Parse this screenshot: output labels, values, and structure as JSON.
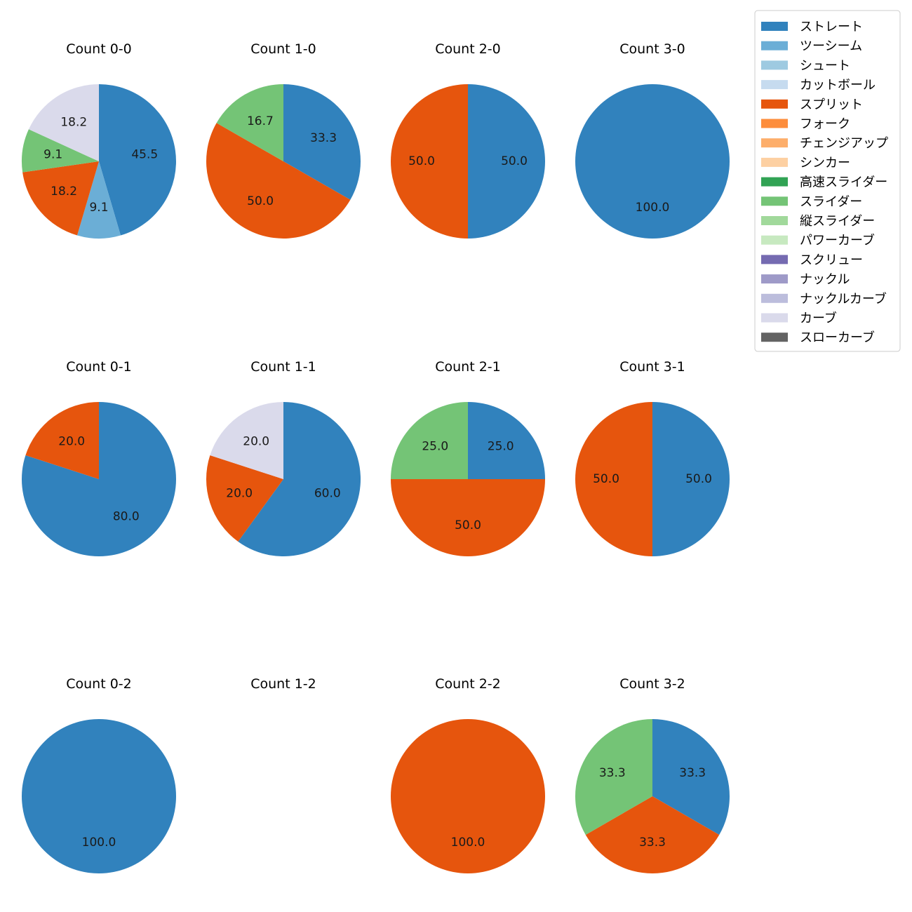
{
  "chart_data": {
    "type": "pie",
    "legend": {
      "placement": "top-right",
      "entries": [
        {
          "name": "ストレート",
          "color": "#3182bd"
        },
        {
          "name": "ツーシーム",
          "color": "#6baed6"
        },
        {
          "name": "シュート",
          "color": "#9ecae1"
        },
        {
          "name": "カットボール",
          "color": "#c6dbef"
        },
        {
          "name": "スプリット",
          "color": "#e6550d"
        },
        {
          "name": "フォーク",
          "color": "#fd8d3c"
        },
        {
          "name": "チェンジアップ",
          "color": "#fdae6b"
        },
        {
          "name": "シンカー",
          "color": "#fdd0a2"
        },
        {
          "name": "高速スライダー",
          "color": "#31a354"
        },
        {
          "name": "スライダー",
          "color": "#74c476"
        },
        {
          "name": "縦スライダー",
          "color": "#a1d99b"
        },
        {
          "name": "パワーカーブ",
          "color": "#c7e9c0"
        },
        {
          "name": "スクリュー",
          "color": "#756bb1"
        },
        {
          "name": "ナックル",
          "color": "#9e9ac8"
        },
        {
          "name": "ナックルカーブ",
          "color": "#bcbddc"
        },
        {
          "name": "カーブ",
          "color": "#dadaeb"
        },
        {
          "name": "スローカーブ",
          "color": "#636363"
        }
      ]
    },
    "pies": [
      {
        "title": "Count 0-0",
        "slices": [
          {
            "pitch": "ストレート",
            "value": 45.5,
            "label": "45.5"
          },
          {
            "pitch": "ツーシーム",
            "value": 9.1,
            "label": "9.1"
          },
          {
            "pitch": "スプリット",
            "value": 18.2,
            "label": "18.2"
          },
          {
            "pitch": "スライダー",
            "value": 9.1,
            "label": "9.1"
          },
          {
            "pitch": "カーブ",
            "value": 18.2,
            "label": "18.2"
          }
        ]
      },
      {
        "title": "Count 1-0",
        "slices": [
          {
            "pitch": "ストレート",
            "value": 33.3,
            "label": "33.3"
          },
          {
            "pitch": "スプリット",
            "value": 50.0,
            "label": "50.0"
          },
          {
            "pitch": "スライダー",
            "value": 16.7,
            "label": "16.7"
          }
        ]
      },
      {
        "title": "Count 2-0",
        "slices": [
          {
            "pitch": "ストレート",
            "value": 50.0,
            "label": "50.0"
          },
          {
            "pitch": "スプリット",
            "value": 50.0,
            "label": "50.0"
          }
        ]
      },
      {
        "title": "Count 3-0",
        "slices": [
          {
            "pitch": "ストレート",
            "value": 100.0,
            "label": "100.0"
          }
        ]
      },
      {
        "title": "Count 0-1",
        "slices": [
          {
            "pitch": "ストレート",
            "value": 80.0,
            "label": "80.0"
          },
          {
            "pitch": "スプリット",
            "value": 20.0,
            "label": "20.0"
          }
        ]
      },
      {
        "title": "Count 1-1",
        "slices": [
          {
            "pitch": "ストレート",
            "value": 60.0,
            "label": "60.0"
          },
          {
            "pitch": "スプリット",
            "value": 20.0,
            "label": "20.0"
          },
          {
            "pitch": "カーブ",
            "value": 20.0,
            "label": "20.0"
          }
        ]
      },
      {
        "title": "Count 2-1",
        "slices": [
          {
            "pitch": "ストレート",
            "value": 25.0,
            "label": "25.0"
          },
          {
            "pitch": "スプリット",
            "value": 50.0,
            "label": "50.0"
          },
          {
            "pitch": "スライダー",
            "value": 25.0,
            "label": "25.0"
          }
        ]
      },
      {
        "title": "Count 3-1",
        "slices": [
          {
            "pitch": "ストレート",
            "value": 50.0,
            "label": "50.0"
          },
          {
            "pitch": "スプリット",
            "value": 50.0,
            "label": "50.0"
          }
        ]
      },
      {
        "title": "Count 0-2",
        "slices": [
          {
            "pitch": "ストレート",
            "value": 100.0,
            "label": "100.0"
          }
        ]
      },
      {
        "title": "Count 1-2",
        "slices": []
      },
      {
        "title": "Count 2-2",
        "slices": [
          {
            "pitch": "スプリット",
            "value": 100.0,
            "label": "100.0"
          }
        ]
      },
      {
        "title": "Count 3-2",
        "slices": [
          {
            "pitch": "ストレート",
            "value": 33.3,
            "label": "33.3"
          },
          {
            "pitch": "スプリット",
            "value": 33.3,
            "label": "33.3"
          },
          {
            "pitch": "スライダー",
            "value": 33.3,
            "label": "33.3"
          }
        ]
      }
    ]
  }
}
